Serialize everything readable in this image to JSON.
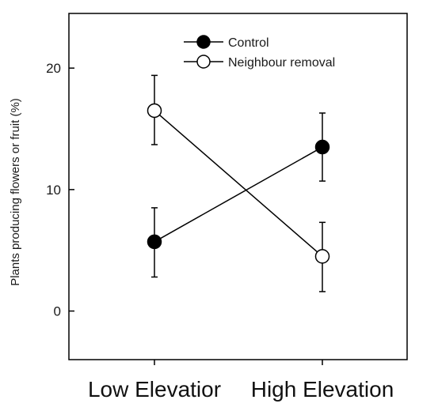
{
  "chart_data": {
    "type": "line",
    "ylabel": "Plants producing flowers or fruit (%)",
    "categories": [
      "Low Elevatior",
      "High Elevation"
    ],
    "yticks": [
      "0",
      "10",
      "20"
    ],
    "ylim": [
      -4,
      24.5
    ],
    "grid": false,
    "legend_position": "top-center",
    "series": [
      {
        "name": "Control",
        "marker": "filled-circle",
        "values": [
          5.7,
          13.5
        ],
        "error_low": [
          2.8,
          10.7
        ],
        "error_high": [
          8.5,
          16.3
        ],
        "color": "#000000"
      },
      {
        "name": "Neighbour removal",
        "marker": "open-circle",
        "values": [
          16.5,
          4.5
        ],
        "error_low": [
          13.7,
          1.6
        ],
        "error_high": [
          19.4,
          7.3
        ],
        "color": "#000000"
      }
    ]
  }
}
